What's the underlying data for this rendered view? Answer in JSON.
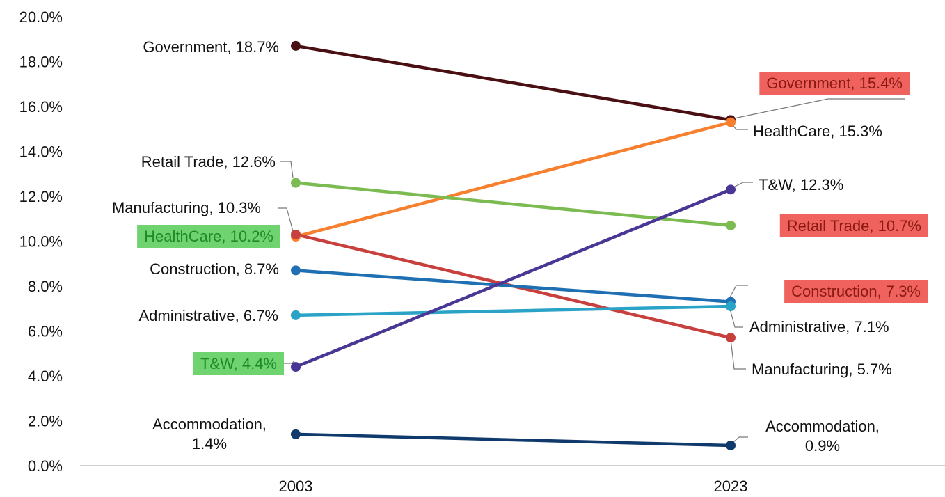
{
  "chart_data": {
    "type": "line",
    "title": "",
    "xlabel": "",
    "ylabel": "",
    "categories": [
      "2003",
      "2023"
    ],
    "ylim": [
      0,
      20
    ],
    "yticks": [
      "0.0%",
      "2.0%",
      "4.0%",
      "6.0%",
      "8.0%",
      "10.0%",
      "12.0%",
      "14.0%",
      "16.0%",
      "18.0%",
      "20.0%"
    ],
    "grid": false,
    "legend": "none",
    "series": [
      {
        "name": "Government",
        "values": [
          18.7,
          15.4
        ],
        "color": "#4a0f12",
        "labels": [
          "Government, 18.7%",
          "Government, 15.4%"
        ],
        "highlight": [
          "",
          "red"
        ]
      },
      {
        "name": "HealthCare",
        "values": [
          10.2,
          15.3
        ],
        "color": "#f7802f",
        "labels": [
          "HealthCare, 10.2%",
          "HealthCare, 15.3%"
        ],
        "highlight": [
          "green",
          ""
        ]
      },
      {
        "name": "Retail Trade",
        "values": [
          12.6,
          10.7
        ],
        "color": "#7cbb52",
        "labels": [
          "Retail Trade, 12.6%",
          "Retail Trade, 10.7%"
        ],
        "highlight": [
          "",
          "red"
        ]
      },
      {
        "name": "Manufacturing",
        "values": [
          10.3,
          5.7
        ],
        "color": "#c8403e",
        "labels": [
          "Manufacturing, 10.3%",
          "Manufacturing, 5.7%"
        ],
        "highlight": [
          "",
          ""
        ]
      },
      {
        "name": "Construction",
        "values": [
          8.7,
          7.3
        ],
        "color": "#1f6fb3",
        "labels": [
          "Construction, 8.7%",
          "Construction, 7.3%"
        ],
        "highlight": [
          "",
          "red"
        ]
      },
      {
        "name": "Administrative",
        "values": [
          6.7,
          7.1
        ],
        "color": "#2aa3c6",
        "labels": [
          "Administrative, 6.7%",
          "Administrative, 7.1%"
        ],
        "highlight": [
          "",
          ""
        ]
      },
      {
        "name": "T&W",
        "values": [
          4.4,
          12.3
        ],
        "color": "#4a3694",
        "labels": [
          "T&W, 4.4%",
          "T&W, 12.3%"
        ],
        "highlight": [
          "green",
          ""
        ]
      },
      {
        "name": "Accommodation",
        "values": [
          1.4,
          0.9
        ],
        "color": "#103a6b",
        "labels": [
          [
            "Accommodation,",
            "1.4%"
          ],
          [
            "Accommodation,",
            "0.9%"
          ]
        ],
        "highlight": [
          "",
          ""
        ]
      }
    ]
  },
  "colors": {
    "highlight_red": "#f0625e",
    "highlight_green": "#6fd36f",
    "axis": "#bfbfbf",
    "leader": "#777777"
  }
}
